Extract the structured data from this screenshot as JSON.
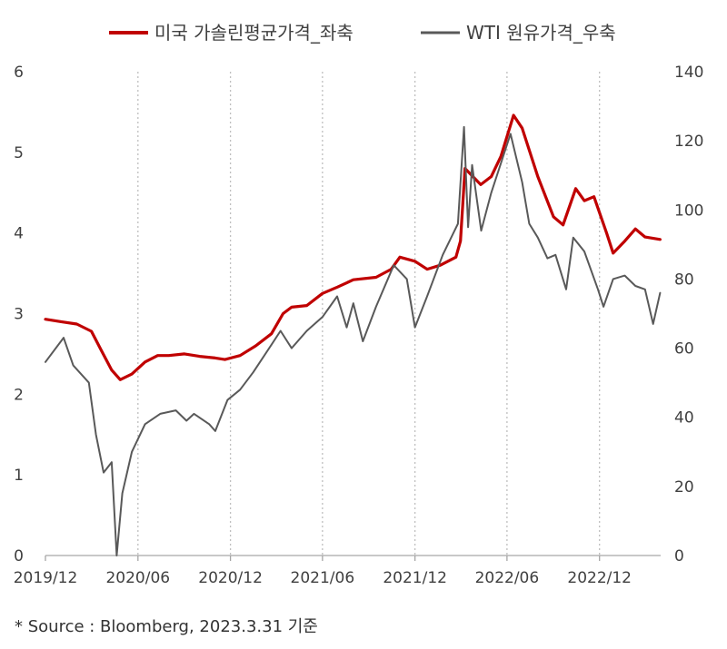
{
  "colors": {
    "gasoline": "#c00000",
    "wti": "#595959",
    "grid": "#bfbfbf",
    "axis": "#a6a6a6"
  },
  "source_note": "* Source : Bloomberg, 2023.3.31 기준",
  "chart_data": {
    "type": "line",
    "title": "",
    "legend_position": "top",
    "grid": "vertical dotted",
    "x_ticks": [
      "2019/12",
      "2020/06",
      "2020/12",
      "2021/06",
      "2021/12",
      "2022/06",
      "2022/12"
    ],
    "y_left": {
      "lim": [
        0,
        6
      ],
      "ticks": [
        "0",
        "1",
        "2",
        "3",
        "4",
        "5",
        "6"
      ]
    },
    "y_right": {
      "lim": [
        0,
        140
      ],
      "ticks": [
        "0",
        "20",
        "40",
        "60",
        "80",
        "100",
        "120",
        "140"
      ]
    },
    "x_range": [
      "2019-12-01",
      "2023-04-01"
    ],
    "series": [
      {
        "name": "미국 가솔린평균가격_좌축",
        "axis": "left",
        "color": "#c00000",
        "points": [
          [
            "2019-12-01",
            2.93
          ],
          [
            "2020-01-01",
            2.9
          ],
          [
            "2020-02-01",
            2.87
          ],
          [
            "2020-03-01",
            2.78
          ],
          [
            "2020-03-20",
            2.55
          ],
          [
            "2020-04-10",
            2.3
          ],
          [
            "2020-04-27",
            2.18
          ],
          [
            "2020-05-20",
            2.25
          ],
          [
            "2020-06-15",
            2.4
          ],
          [
            "2020-07-10",
            2.48
          ],
          [
            "2020-08-01",
            2.48
          ],
          [
            "2020-09-01",
            2.5
          ],
          [
            "2020-10-01",
            2.47
          ],
          [
            "2020-11-01",
            2.45
          ],
          [
            "2020-11-20",
            2.43
          ],
          [
            "2020-12-20",
            2.48
          ],
          [
            "2021-01-20",
            2.6
          ],
          [
            "2021-02-20",
            2.75
          ],
          [
            "2021-03-15",
            3.0
          ],
          [
            "2021-04-01",
            3.08
          ],
          [
            "2021-05-01",
            3.1
          ],
          [
            "2021-06-01",
            3.25
          ],
          [
            "2021-07-01",
            3.33
          ],
          [
            "2021-08-01",
            3.42
          ],
          [
            "2021-09-15",
            3.45
          ],
          [
            "2021-10-15",
            3.55
          ],
          [
            "2021-11-01",
            3.7
          ],
          [
            "2021-12-01",
            3.65
          ],
          [
            "2021-12-25",
            3.55
          ],
          [
            "2022-01-20",
            3.6
          ],
          [
            "2022-02-20",
            3.7
          ],
          [
            "2022-03-01",
            3.9
          ],
          [
            "2022-03-10",
            4.8
          ],
          [
            "2022-04-10",
            4.6
          ],
          [
            "2022-05-01",
            4.7
          ],
          [
            "2022-05-20",
            4.95
          ],
          [
            "2022-06-14",
            5.46
          ],
          [
            "2022-07-01",
            5.3
          ],
          [
            "2022-08-01",
            4.7
          ],
          [
            "2022-09-01",
            4.2
          ],
          [
            "2022-09-20",
            4.1
          ],
          [
            "2022-10-15",
            4.55
          ],
          [
            "2022-11-01",
            4.4
          ],
          [
            "2022-11-20",
            4.45
          ],
          [
            "2022-12-15",
            4.0
          ],
          [
            "2022-12-28",
            3.75
          ],
          [
            "2023-01-20",
            3.9
          ],
          [
            "2023-02-10",
            4.05
          ],
          [
            "2023-03-01",
            3.95
          ],
          [
            "2023-03-31",
            3.92
          ]
        ]
      },
      {
        "name": "WTI 원유가격_우축",
        "axis": "right",
        "color": "#595959",
        "points": [
          [
            "2019-12-01",
            56
          ],
          [
            "2020-01-06",
            63
          ],
          [
            "2020-01-25",
            55
          ],
          [
            "2020-02-25",
            50
          ],
          [
            "2020-03-10",
            35
          ],
          [
            "2020-03-25",
            24
          ],
          [
            "2020-04-10",
            27
          ],
          [
            "2020-04-20",
            0
          ],
          [
            "2020-05-01",
            18
          ],
          [
            "2020-05-20",
            30
          ],
          [
            "2020-06-15",
            38
          ],
          [
            "2020-07-15",
            41
          ],
          [
            "2020-08-15",
            42
          ],
          [
            "2020-09-05",
            39
          ],
          [
            "2020-09-20",
            41
          ],
          [
            "2020-10-20",
            38
          ],
          [
            "2020-11-01",
            36
          ],
          [
            "2020-11-25",
            45
          ],
          [
            "2020-12-20",
            48
          ],
          [
            "2021-01-15",
            53
          ],
          [
            "2021-02-20",
            61
          ],
          [
            "2021-03-10",
            65
          ],
          [
            "2021-04-01",
            60
          ],
          [
            "2021-05-01",
            65
          ],
          [
            "2021-06-01",
            69
          ],
          [
            "2021-06-30",
            75
          ],
          [
            "2021-07-19",
            66
          ],
          [
            "2021-08-01",
            73
          ],
          [
            "2021-08-20",
            62
          ],
          [
            "2021-09-15",
            72
          ],
          [
            "2021-10-20",
            84
          ],
          [
            "2021-11-15",
            80
          ],
          [
            "2021-12-01",
            66
          ],
          [
            "2021-12-25",
            75
          ],
          [
            "2022-01-25",
            87
          ],
          [
            "2022-02-24",
            96
          ],
          [
            "2022-03-08",
            124
          ],
          [
            "2022-03-16",
            95
          ],
          [
            "2022-03-24",
            113
          ],
          [
            "2022-04-11",
            94
          ],
          [
            "2022-05-01",
            105
          ],
          [
            "2022-06-08",
            122
          ],
          [
            "2022-07-01",
            108
          ],
          [
            "2022-07-15",
            96
          ],
          [
            "2022-08-01",
            92
          ],
          [
            "2022-08-20",
            86
          ],
          [
            "2022-09-05",
            87
          ],
          [
            "2022-09-26",
            77
          ],
          [
            "2022-10-10",
            92
          ],
          [
            "2022-11-01",
            88
          ],
          [
            "2022-11-28",
            77
          ],
          [
            "2022-12-09",
            72
          ],
          [
            "2022-12-28",
            80
          ],
          [
            "2023-01-20",
            81
          ],
          [
            "2023-02-10",
            78
          ],
          [
            "2023-03-01",
            77
          ],
          [
            "2023-03-17",
            67
          ],
          [
            "2023-03-31",
            76
          ]
        ]
      }
    ]
  }
}
